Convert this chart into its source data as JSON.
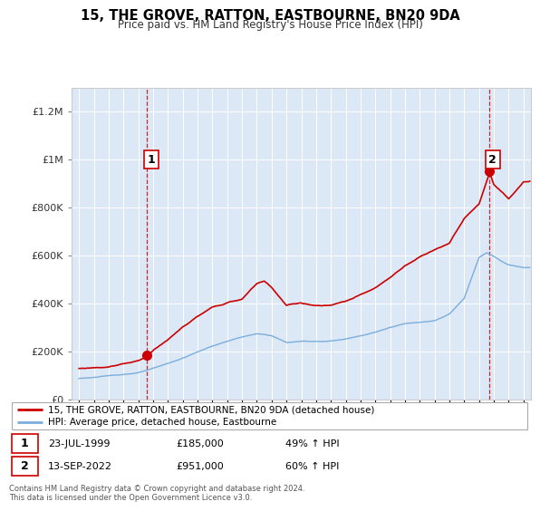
{
  "title": "15, THE GROVE, RATTON, EASTBOURNE, BN20 9DA",
  "subtitle": "Price paid vs. HM Land Registry's House Price Index (HPI)",
  "property_label": "15, THE GROVE, RATTON, EASTBOURNE, BN20 9DA (detached house)",
  "hpi_label": "HPI: Average price, detached house, Eastbourne",
  "sale1_date": 1999.56,
  "sale1_price": 185000,
  "sale2_date": 2022.71,
  "sale2_price": 951000,
  "sale1_text": "23-JUL-1999",
  "sale2_text": "13-SEP-2022",
  "annotation1_price": "£185,000",
  "annotation2_price": "£951,000",
  "sale1_pct": "49% ↑ HPI",
  "sale2_pct": "60% ↑ HPI",
  "footer": "Contains HM Land Registry data © Crown copyright and database right 2024.\nThis data is licensed under the Open Government Licence v3.0.",
  "property_color": "#cc0000",
  "hpi_color": "#7aaedc",
  "plot_bg_color": "#dce8f5",
  "hpi_knots_x": [
    1995,
    1996,
    1997,
    1998,
    1999,
    2000,
    2001,
    2002,
    2003,
    2004,
    2005,
    2006,
    2007,
    2008,
    2009,
    2010,
    2011,
    2012,
    2013,
    2014,
    2015,
    2016,
    2017,
    2018,
    2019,
    2020,
    2021,
    2022,
    2022.5,
    2023,
    2023.5,
    2024,
    2025
  ],
  "hpi_knots_y": [
    88000,
    93000,
    98000,
    105000,
    112000,
    128000,
    148000,
    170000,
    196000,
    220000,
    240000,
    258000,
    270000,
    262000,
    233000,
    238000,
    238000,
    240000,
    248000,
    263000,
    278000,
    298000,
    313000,
    318000,
    328000,
    355000,
    420000,
    590000,
    610000,
    595000,
    575000,
    560000,
    550000
  ],
  "prop_knots_x": [
    1995,
    1996,
    1997,
    1998,
    1999.0,
    1999.56,
    2000,
    2001,
    2002,
    2003,
    2004,
    2005,
    2006,
    2007,
    2007.5,
    2008,
    2009,
    2010,
    2011,
    2012,
    2013,
    2014,
    2015,
    2016,
    2017,
    2018,
    2019,
    2020,
    2021,
    2022.0,
    2022.71,
    2023,
    2023.5,
    2024,
    2025
  ],
  "prop_knots_y": [
    130000,
    135000,
    140000,
    155000,
    168000,
    185000,
    215000,
    258000,
    310000,
    355000,
    390000,
    410000,
    425000,
    490000,
    500000,
    475000,
    400000,
    410000,
    400000,
    400000,
    415000,
    440000,
    468000,
    510000,
    560000,
    600000,
    630000,
    660000,
    760000,
    820000,
    951000,
    900000,
    870000,
    840000,
    910000
  ],
  "ylim_max": 1300000,
  "ytick_step": 200000,
  "xmin": 1994.5,
  "xmax": 2025.5
}
